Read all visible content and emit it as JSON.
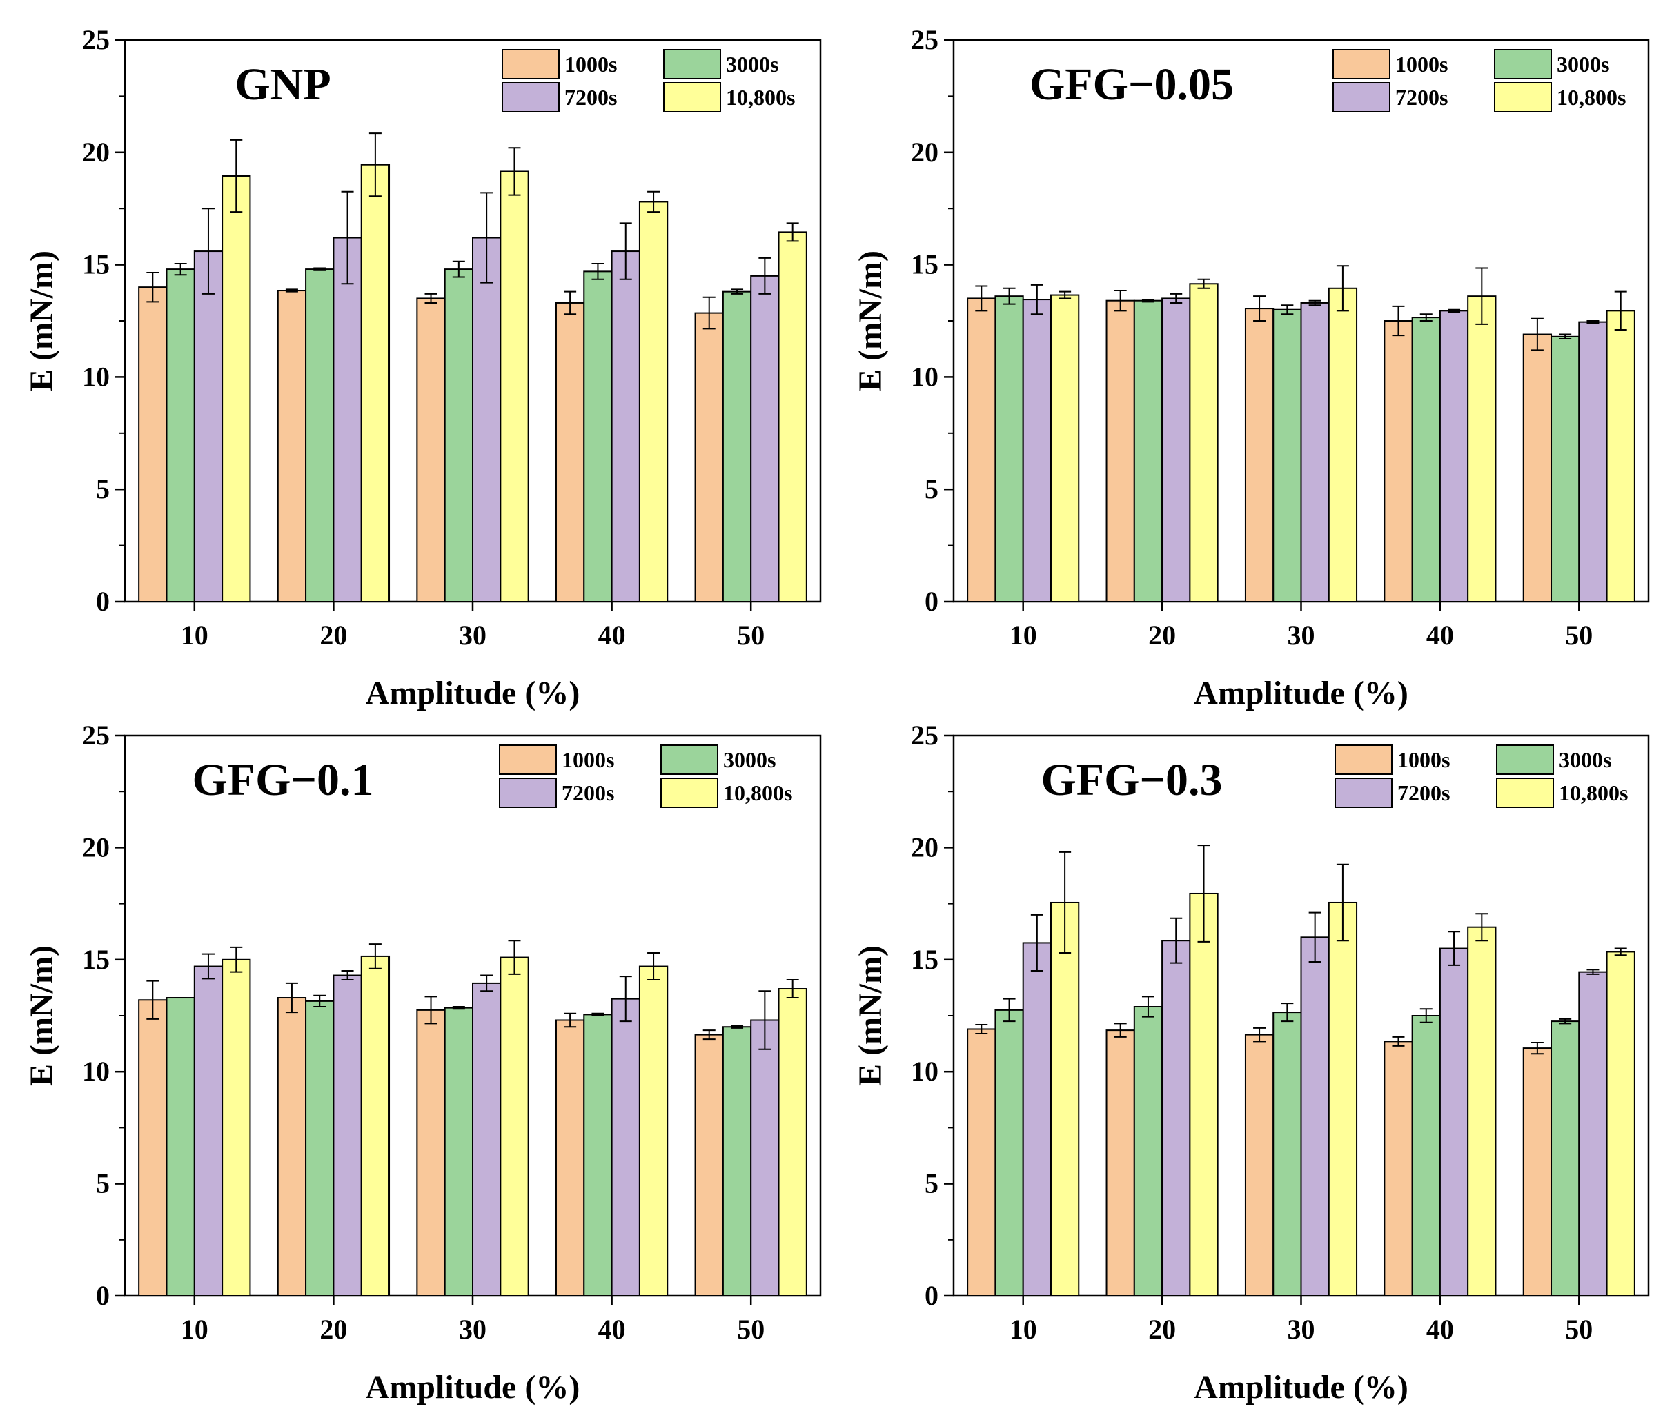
{
  "colors": {
    "1000s": "#F9C89A",
    "3000s": "#9BD49B",
    "7200s": "#C3B1D8",
    "10,800s": "#FFFF99"
  },
  "chart_data": [
    {
      "type": "bar",
      "title": "GNP",
      "xlabel": "Amplitude (%)",
      "ylabel": "E (mN/m)",
      "ylim": [
        0,
        25
      ],
      "yticks": [
        "0",
        "5",
        "10",
        "15",
        "20",
        "25"
      ],
      "categories": [
        "10",
        "20",
        "30",
        "40",
        "50"
      ],
      "legend": [
        "1000s",
        "3000s",
        "7200s",
        "10,800s"
      ],
      "legend_position": "top-right",
      "series": [
        {
          "name": "1000s",
          "values": [
            14.0,
            13.85,
            13.5,
            13.3,
            12.85
          ],
          "errors": [
            0.65,
            0.05,
            0.2,
            0.5,
            0.7
          ]
        },
        {
          "name": "3000s",
          "values": [
            14.8,
            14.8,
            14.8,
            14.7,
            13.8
          ],
          "errors": [
            0.25,
            0.05,
            0.35,
            0.35,
            0.1
          ]
        },
        {
          "name": "7200s",
          "values": [
            15.6,
            16.2,
            16.2,
            15.6,
            14.5
          ],
          "errors": [
            1.9,
            2.05,
            2.0,
            1.25,
            0.8
          ]
        },
        {
          "name": "10,800s",
          "values": [
            18.95,
            19.45,
            19.15,
            17.8,
            16.45
          ],
          "errors": [
            1.6,
            1.4,
            1.05,
            0.45,
            0.4
          ]
        }
      ]
    },
    {
      "type": "bar",
      "title": "GFG−0.05",
      "xlabel": "Amplitude (%)",
      "ylabel": "E (mN/m)",
      "ylim": [
        0,
        25
      ],
      "yticks": [
        "0",
        "5",
        "10",
        "15",
        "20",
        "25"
      ],
      "categories": [
        "10",
        "20",
        "30",
        "40",
        "50"
      ],
      "legend": [
        "1000s",
        "3000s",
        "7200s",
        "10,800s"
      ],
      "legend_position": "top-right",
      "series": [
        {
          "name": "1000s",
          "values": [
            13.5,
            13.4,
            13.05,
            12.5,
            11.9
          ],
          "errors": [
            0.55,
            0.45,
            0.55,
            0.65,
            0.7
          ]
        },
        {
          "name": "3000s",
          "values": [
            13.6,
            13.4,
            13.0,
            12.65,
            11.8
          ],
          "errors": [
            0.35,
            0.05,
            0.2,
            0.15,
            0.1
          ]
        },
        {
          "name": "7200s",
          "values": [
            13.45,
            13.5,
            13.3,
            12.95,
            12.45
          ],
          "errors": [
            0.65,
            0.2,
            0.1,
            0.05,
            0.05
          ]
        },
        {
          "name": "10,800s",
          "values": [
            13.65,
            14.15,
            13.95,
            13.6,
            12.95
          ],
          "errors": [
            0.15,
            0.2,
            1.0,
            1.25,
            0.85
          ]
        }
      ]
    },
    {
      "type": "bar",
      "title": "GFG−0.1",
      "xlabel": "Amplitude (%)",
      "ylabel": "E (mN/m)",
      "ylim": [
        0,
        25
      ],
      "yticks": [
        "0",
        "5",
        "10",
        "15",
        "20",
        "25"
      ],
      "categories": [
        "10",
        "20",
        "30",
        "40",
        "50"
      ],
      "legend": [
        "1000s",
        "3000s",
        "7200s",
        "10,800s"
      ],
      "legend_position": "top-right",
      "series": [
        {
          "name": "1000s",
          "values": [
            13.2,
            13.3,
            12.75,
            12.3,
            11.65
          ],
          "errors": [
            0.85,
            0.65,
            0.6,
            0.3,
            0.2
          ]
        },
        {
          "name": "3000s",
          "values": [
            13.3,
            13.15,
            12.85,
            12.55,
            12.0
          ],
          "errors": [
            0.0,
            0.25,
            0.05,
            0.05,
            0.05
          ]
        },
        {
          "name": "7200s",
          "values": [
            14.7,
            14.3,
            13.95,
            13.25,
            12.3
          ],
          "errors": [
            0.55,
            0.2,
            0.35,
            1.0,
            1.3
          ]
        },
        {
          "name": "10,800s",
          "values": [
            15.0,
            15.15,
            15.1,
            14.7,
            13.7
          ],
          "errors": [
            0.55,
            0.55,
            0.75,
            0.6,
            0.4
          ]
        }
      ]
    },
    {
      "type": "bar",
      "title": "GFG−0.3",
      "xlabel": "Amplitude (%)",
      "ylabel": "E (mN/m)",
      "ylim": [
        0,
        25
      ],
      "yticks": [
        "0",
        "5",
        "10",
        "15",
        "20",
        "25"
      ],
      "categories": [
        "10",
        "20",
        "30",
        "40",
        "50"
      ],
      "legend": [
        "1000s",
        "3000s",
        "7200s",
        "10,800s"
      ],
      "legend_position": "top-right",
      "series": [
        {
          "name": "1000s",
          "values": [
            11.9,
            11.85,
            11.65,
            11.35,
            11.05
          ],
          "errors": [
            0.2,
            0.3,
            0.3,
            0.2,
            0.25
          ]
        },
        {
          "name": "3000s",
          "values": [
            12.75,
            12.9,
            12.65,
            12.5,
            12.25
          ],
          "errors": [
            0.5,
            0.45,
            0.4,
            0.3,
            0.1
          ]
        },
        {
          "name": "7200s",
          "values": [
            15.75,
            15.85,
            16.0,
            15.5,
            14.45
          ],
          "errors": [
            1.25,
            1.0,
            1.1,
            0.75,
            0.1
          ]
        },
        {
          "name": "10,800s",
          "values": [
            17.55,
            17.95,
            17.55,
            16.45,
            15.35
          ],
          "errors": [
            2.25,
            2.15,
            1.7,
            0.6,
            0.15
          ]
        }
      ]
    }
  ]
}
